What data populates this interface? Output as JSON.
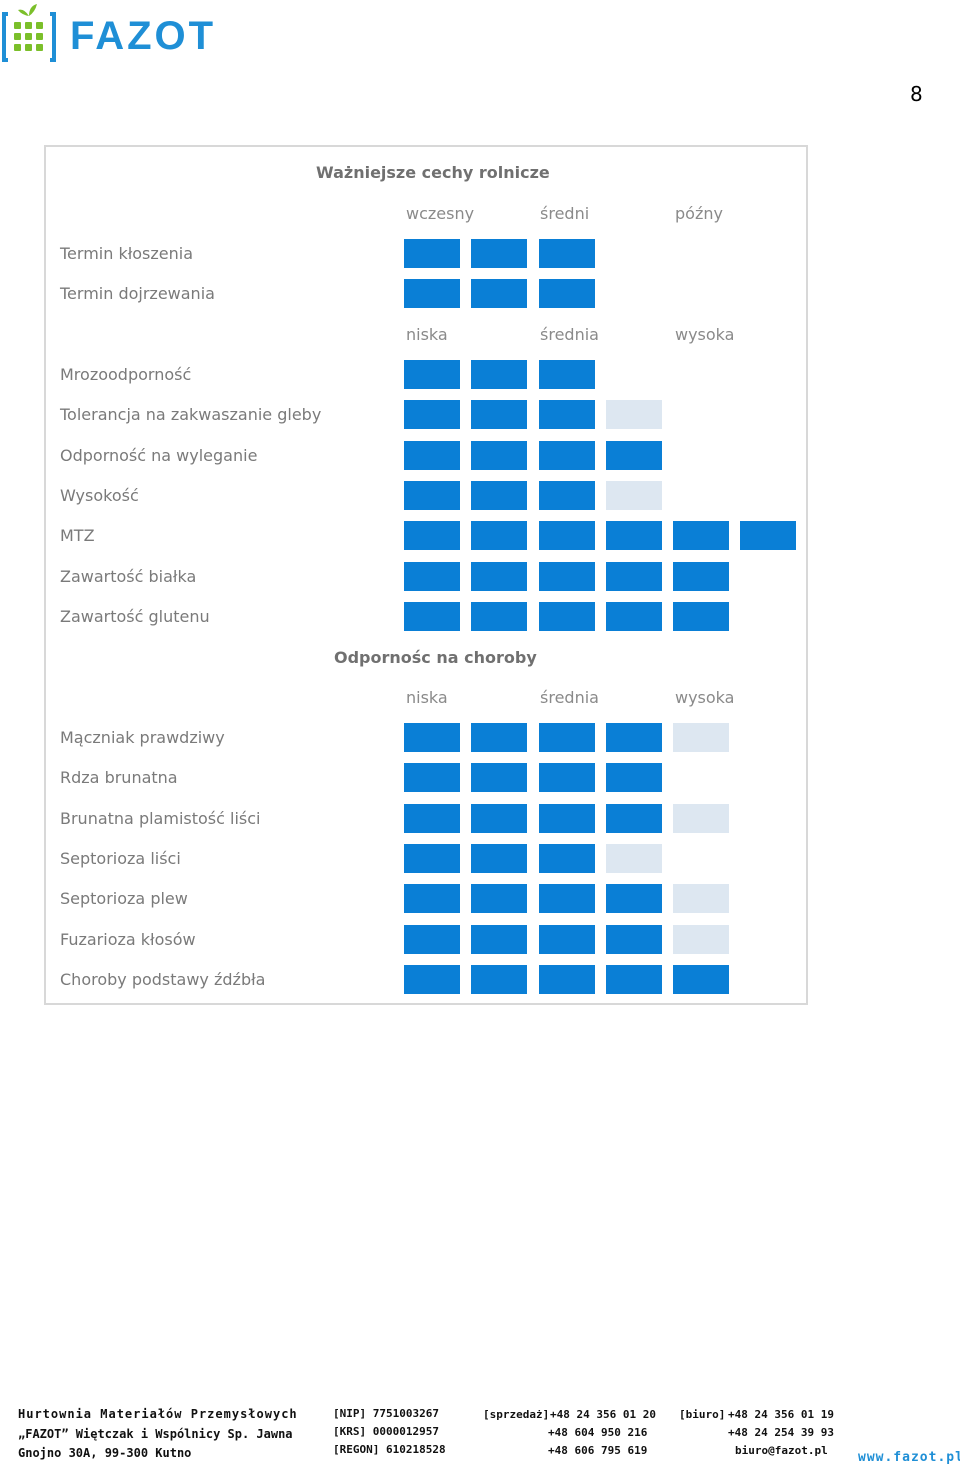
{
  "header": {
    "logo_text": "FAZOT",
    "page_number": "8"
  },
  "colors": {
    "accent": "#0a7fd6",
    "inactive": "#dde7f1",
    "brand": "#1f8fd6"
  },
  "table": {
    "title": "Ważniejsze cechy rolnicze",
    "scale_timing": [
      "wczesny",
      "średni",
      "późny"
    ],
    "timing_rows": [
      {
        "label": "Termin kłoszenia",
        "filled": 3,
        "light": 0
      },
      {
        "label": "Termin dojrzewania",
        "filled": 3,
        "light": 0
      }
    ],
    "scale_level": [
      "niska",
      "średnia",
      "wysoka"
    ],
    "trait_rows": [
      {
        "label": "Mrozoodporność",
        "filled": 3,
        "light": 0
      },
      {
        "label": "Tolerancja na zakwaszanie gleby",
        "filled": 3,
        "light": 1
      },
      {
        "label": "Odporność na wyleganie",
        "filled": 4,
        "light": 0
      },
      {
        "label": "Wysokość",
        "filled": 3,
        "light": 1
      },
      {
        "label": "MTZ",
        "filled": 6,
        "light": 0
      },
      {
        "label": "Zawartość białka",
        "filled": 5,
        "light": 0
      },
      {
        "label": "Zawartość glutenu",
        "filled": 5,
        "light": 0
      }
    ],
    "disease_title": "Odpornośc na choroby",
    "scale_disease": [
      "niska",
      "średnia",
      "wysoka"
    ],
    "disease_rows": [
      {
        "label": "Mączniak prawdziwy",
        "filled": 4,
        "light": 1
      },
      {
        "label": "Rdza brunatna",
        "filled": 4,
        "light": 0
      },
      {
        "label": "Brunatna plamistość liści",
        "filled": 4,
        "light": 1
      },
      {
        "label": "Septorioza liści",
        "filled": 3,
        "light": 1
      },
      {
        "label": "Septorioza plew",
        "filled": 4,
        "light": 1
      },
      {
        "label": "Fuzarioza kłosów",
        "filled": 4,
        "light": 1
      },
      {
        "label": "Choroby podstawy źdźbła",
        "filled": 5,
        "light": 0
      }
    ]
  },
  "footer": {
    "company_line1": "Hurtownia Materiałów Przemysłowych",
    "company_line2": "„FAZOT” Więtczak i Wspólnicy Sp. Jawna",
    "company_line3": "Gnojno 30A, 99-300 Kutno",
    "nip": "[NIP]   7751003267",
    "krs": "[KRS]   0000012957",
    "regon": "[REGON] 610218528",
    "sales_label": "[sprzedaż]",
    "sales_phone1": "+48 24 356 01 20",
    "sales_phone2": "+48 604 950 216",
    "sales_phone3": "+48 606 795 619",
    "office_label": "[biuro]",
    "office_phone1": "+48 24 356 01 19",
    "office_phone2": "+48 24 254 39 93",
    "office_email": "biuro@fazot.pl",
    "website": "www.fazot.pl"
  }
}
